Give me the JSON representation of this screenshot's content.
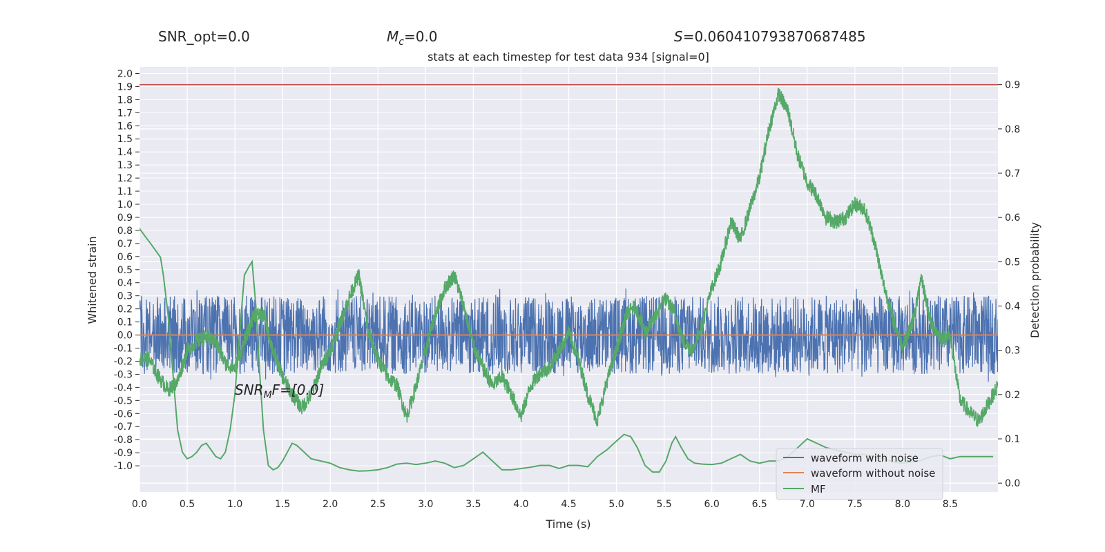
{
  "header": {
    "snr_opt": "SNR_opt=0.0",
    "mc_symbol": "M",
    "mc_sub": "c",
    "mc_value": "=0.0",
    "s_symbol": "S",
    "s_value": "=0.060410793870687485"
  },
  "chart_data": {
    "type": "line",
    "title": "stats at each timestep for test data 934 [signal=0]",
    "xlabel": "Time (s)",
    "ylabel_left": "Whitened strain",
    "ylabel_right": "Detection probability",
    "x_ticks": [
      "0.0",
      "0.5",
      "1.0",
      "1.5",
      "2.0",
      "2.5",
      "3.0",
      "3.5",
      "4.0",
      "4.5",
      "5.0",
      "5.5",
      "6.0",
      "6.5",
      "7.0",
      "7.5",
      "8.0",
      "8.5"
    ],
    "xlim": [
      0,
      9.0
    ],
    "right_ylim": [
      -0.02,
      0.94
    ],
    "right_ticks": [
      "0.0",
      "0.1",
      "0.2",
      "0.3",
      "0.4",
      "0.5",
      "0.6",
      "0.7",
      "0.8",
      "0.9"
    ],
    "left_ylim": [
      -1.2,
      2.05
    ],
    "left_ticks": [
      "-1.0",
      "-0.9",
      "-0.8",
      "-0.7",
      "-0.6",
      "-0.5",
      "-0.4",
      "-0.3",
      "-0.2",
      "-0.1",
      "0.0",
      "0.1",
      "0.2",
      "0.3",
      "0.4",
      "0.5",
      "0.6",
      "0.7",
      "0.8",
      "0.9",
      "1.0",
      "1.1",
      "1.2",
      "1.3",
      "1.4",
      "1.5",
      "1.6",
      "1.7",
      "1.8",
      "1.9",
      "2.0"
    ],
    "threshold": 0.9,
    "annotation": {
      "prefix": "SNR",
      "sub": "M",
      "suffix": "F=[0.0]"
    },
    "grid": true,
    "legend_position": "bottom-right",
    "series": [
      {
        "name": "waveform with noise",
        "color": "#4c72b0",
        "axis": "left",
        "noise_amplitude": 0.3,
        "spike_max": 0.36
      },
      {
        "name": "waveform without noise",
        "color": "#dd8452",
        "axis": "left",
        "values_const": 0.0
      },
      {
        "name": "MF",
        "color": "#55a868",
        "axis": "right",
        "x": [
          0.0,
          0.05,
          0.12,
          0.22,
          0.25,
          0.3,
          0.35,
          0.4,
          0.45,
          0.5,
          0.55,
          0.6,
          0.65,
          0.7,
          0.75,
          0.8,
          0.85,
          0.9,
          0.95,
          1.0,
          1.05,
          1.1,
          1.15,
          1.18,
          1.22,
          1.26,
          1.3,
          1.35,
          1.4,
          1.45,
          1.5,
          1.55,
          1.6,
          1.65,
          1.7,
          1.75,
          1.8,
          1.9,
          2.0,
          2.1,
          2.2,
          2.3,
          2.4,
          2.5,
          2.6,
          2.7,
          2.8,
          2.9,
          3.0,
          3.1,
          3.2,
          3.3,
          3.4,
          3.5,
          3.6,
          3.7,
          3.8,
          3.9,
          4.0,
          4.1,
          4.2,
          4.3,
          4.4,
          4.5,
          4.6,
          4.7,
          4.8,
          4.9,
          5.0,
          5.08,
          5.15,
          5.22,
          5.3,
          5.38,
          5.45,
          5.52,
          5.58,
          5.62,
          5.68,
          5.75,
          5.82,
          5.9,
          6.0,
          6.1,
          6.2,
          6.3,
          6.4,
          6.5,
          6.6,
          6.7,
          6.8,
          6.9,
          7.0,
          7.05,
          7.1,
          7.2,
          7.3,
          7.4,
          7.5,
          7.6,
          7.7,
          7.8,
          7.9,
          8.0,
          8.1,
          8.2,
          8.3,
          8.4,
          8.5,
          8.6,
          8.7,
          8.8,
          8.95
        ],
        "values": [
          0.575,
          0.56,
          0.54,
          0.51,
          0.47,
          0.38,
          0.25,
          0.12,
          0.07,
          0.055,
          0.06,
          0.07,
          0.085,
          0.09,
          0.075,
          0.06,
          0.055,
          0.07,
          0.12,
          0.2,
          0.34,
          0.47,
          0.49,
          0.5,
          0.4,
          0.25,
          0.12,
          0.04,
          0.03,
          0.035,
          0.05,
          0.07,
          0.09,
          0.085,
          0.075,
          0.065,
          0.055,
          0.05,
          0.045,
          0.035,
          0.03,
          0.027,
          0.028,
          0.03,
          0.035,
          0.043,
          0.045,
          0.042,
          0.045,
          0.05,
          0.045,
          0.035,
          0.04,
          0.055,
          0.07,
          0.05,
          0.03,
          0.03,
          0.033,
          0.036,
          0.04,
          0.04,
          0.033,
          0.04,
          0.04,
          0.037,
          0.06,
          0.075,
          0.095,
          0.11,
          0.105,
          0.08,
          0.04,
          0.025,
          0.025,
          0.05,
          0.09,
          0.105,
          0.08,
          0.055,
          0.045,
          0.043,
          0.042,
          0.045,
          0.055,
          0.065,
          0.05,
          0.045,
          0.05,
          0.05,
          0.06,
          0.08,
          0.1,
          0.095,
          0.09,
          0.08,
          0.075,
          0.07,
          0.065,
          0.065,
          0.06,
          0.055,
          0.048,
          0.045,
          0.048,
          0.052,
          0.06,
          0.063,
          0.055,
          0.06,
          0.06,
          0.06,
          0.06
        ]
      }
    ],
    "detection_probability": {
      "color": "#55a868",
      "x": [
        0.0,
        0.1,
        0.2,
        0.3,
        0.4,
        0.5,
        0.6,
        0.7,
        0.8,
        0.9,
        1.0,
        1.1,
        1.2,
        1.3,
        1.4,
        1.5,
        1.6,
        1.7,
        1.8,
        1.9,
        2.0,
        2.1,
        2.2,
        2.3,
        2.4,
        2.5,
        2.6,
        2.7,
        2.8,
        2.9,
        3.0,
        3.1,
        3.2,
        3.3,
        3.4,
        3.5,
        3.6,
        3.7,
        3.8,
        3.9,
        4.0,
        4.1,
        4.2,
        4.3,
        4.4,
        4.5,
        4.6,
        4.7,
        4.8,
        4.9,
        5.0,
        5.1,
        5.2,
        5.3,
        5.4,
        5.5,
        5.6,
        5.7,
        5.8,
        5.9,
        6.0,
        6.1,
        6.2,
        6.3,
        6.4,
        6.5,
        6.6,
        6.7,
        6.8,
        6.9,
        7.0,
        7.1,
        7.2,
        7.3,
        7.4,
        7.5,
        7.6,
        7.7,
        7.8,
        7.9,
        8.0,
        8.1,
        8.2,
        8.3,
        8.4,
        8.5,
        8.6,
        8.7,
        8.8,
        8.9,
        9.0
      ],
      "values": [
        0.28,
        0.28,
        0.24,
        0.21,
        0.23,
        0.3,
        0.32,
        0.33,
        0.32,
        0.27,
        0.26,
        0.32,
        0.38,
        0.38,
        0.3,
        0.24,
        0.2,
        0.17,
        0.2,
        0.26,
        0.3,
        0.36,
        0.42,
        0.47,
        0.34,
        0.28,
        0.24,
        0.22,
        0.15,
        0.22,
        0.3,
        0.38,
        0.44,
        0.47,
        0.4,
        0.31,
        0.26,
        0.22,
        0.24,
        0.2,
        0.15,
        0.22,
        0.25,
        0.26,
        0.3,
        0.34,
        0.28,
        0.2,
        0.14,
        0.23,
        0.3,
        0.38,
        0.4,
        0.34,
        0.37,
        0.42,
        0.39,
        0.32,
        0.3,
        0.36,
        0.44,
        0.5,
        0.59,
        0.55,
        0.62,
        0.69,
        0.8,
        0.88,
        0.84,
        0.74,
        0.68,
        0.65,
        0.6,
        0.59,
        0.6,
        0.63,
        0.62,
        0.55,
        0.45,
        0.37,
        0.31,
        0.36,
        0.46,
        0.36,
        0.33,
        0.33,
        0.19,
        0.16,
        0.14,
        0.18,
        0.22
      ]
    }
  }
}
